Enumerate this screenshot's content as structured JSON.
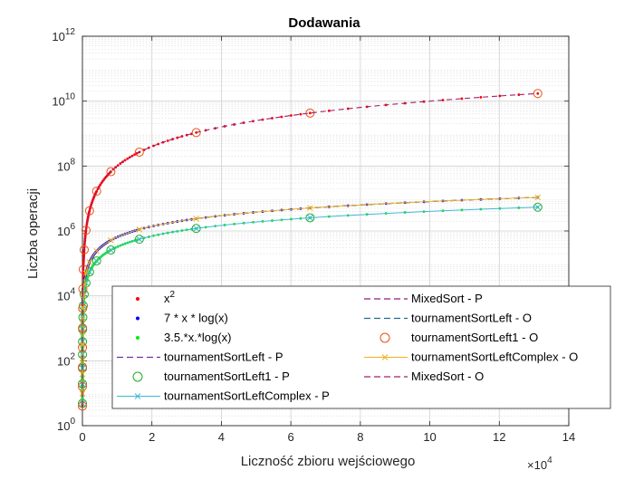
{
  "chart_data": {
    "type": "line",
    "title": "Dodawania",
    "xlabel": "Liczność zbioru wejściowego",
    "ylabel": "Liczba operacji",
    "x_exponent_label": "×10",
    "x_exponent_power": "4",
    "x_scale_note": "x values in units of 10^4",
    "xlim": [
      0,
      14
    ],
    "yscale": "log",
    "ylim_exponent": [
      0,
      12
    ],
    "y_ticks": [
      {
        "base": "10",
        "exp": "0",
        "value": 0
      },
      {
        "base": "10",
        "exp": "2",
        "value": 2
      },
      {
        "base": "10",
        "exp": "4",
        "value": 4
      },
      {
        "base": "10",
        "exp": "6",
        "value": 6
      },
      {
        "base": "10",
        "exp": "8",
        "value": 8
      },
      {
        "base": "10",
        "exp": "10",
        "value": 10
      },
      {
        "base": "10",
        "exp": "12",
        "value": 12
      }
    ],
    "x_ticks": [
      "0",
      "2",
      "4",
      "6",
      "8",
      "10",
      "12",
      "14"
    ],
    "grid": true,
    "legend_placement": "bottom-center",
    "sample_n": [
      2,
      4,
      8,
      16,
      32,
      64,
      128,
      256,
      512,
      1024,
      2048,
      4096,
      8192,
      16384,
      32768,
      65536,
      131072
    ],
    "series": [
      {
        "name": "x",
        "name_sup": "2",
        "style": "dots",
        "color": "#ff0000",
        "formula": "x^2"
      },
      {
        "name": "7 * x * log(x)",
        "style": "dots",
        "color": "#0000ff",
        "formula": "7*x*log(x)"
      },
      {
        "name": "3.5.*x.*log(x)",
        "style": "dots",
        "color": "#00ee00",
        "formula": "3.5*x*log(x)"
      },
      {
        "name": "tournamentSortLeft - P",
        "style": "dashed",
        "color": "#7030a0",
        "formula": "7*x*log(x)"
      },
      {
        "name": "tournamentSortLeft1 - P",
        "style": "circle",
        "color": "#22aa22",
        "formula": "3.5*x*log(x)"
      },
      {
        "name": "tournamentSortLeftComplex - P",
        "style": "solid-x",
        "color": "#3fb8d8",
        "formula": "3.5*x*log(x)"
      },
      {
        "name": "MixedSort - P",
        "style": "dashed",
        "color": "#8b1f7a",
        "formula": "7*x*log(x)"
      },
      {
        "name": "tournamentSortLeft - O",
        "style": "dashed",
        "color": "#1f6e8c",
        "formula": "7*x*log(x)"
      },
      {
        "name": "tournamentSortLeft1 - O",
        "style": "circle",
        "color": "#e8501a",
        "formula": "x^2"
      },
      {
        "name": "tournamentSortLeftComplex - O",
        "style": "solid-x",
        "color": "#f0b020",
        "formula": "7*x*log(x)"
      },
      {
        "name": "MixedSort - O",
        "style": "dashed",
        "color": "#a0206e",
        "formula": "x^2"
      }
    ]
  }
}
